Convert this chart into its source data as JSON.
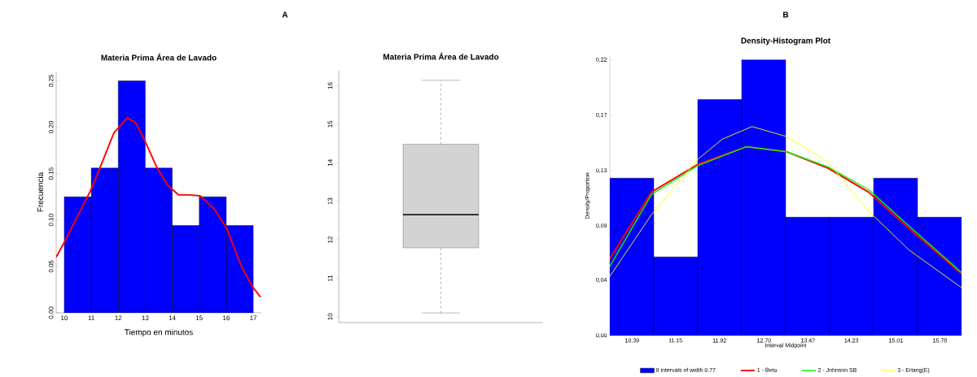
{
  "chart_data": [
    {
      "type": "histogram",
      "title": "Materia Prima Área de Lavado",
      "xlabel": "Tiempo en minutos",
      "ylabel": "Frecuencia",
      "annotations": [
        "A"
      ],
      "bins": [
        10,
        11,
        12,
        13,
        14,
        15,
        16,
        17
      ],
      "series": [
        {
          "color": "#0000ff",
          "values": [
            0.125,
            0.156,
            0.25,
            0.156,
            0.094,
            0.125,
            0.094
          ]
        },
        {
          "type": "line",
          "color": "#ff0000",
          "x": [
            9.7,
            10.0,
            10.63,
            10.98,
            11.43,
            11.84,
            12.34,
            12.64,
            12.99,
            13.44,
            13.84,
            14.24,
            14.64,
            15.04,
            15.55,
            16.0,
            16.55,
            16.95,
            17.27
          ],
          "values": [
            0.06,
            0.076,
            0.112,
            0.132,
            0.164,
            0.194,
            0.21,
            0.205,
            0.185,
            0.156,
            0.137,
            0.127,
            0.127,
            0.126,
            0.112,
            0.092,
            0.051,
            0.029,
            0.017
          ]
        }
      ],
      "xlim": [
        9.7,
        17.3
      ],
      "ylim": [
        0,
        0.26
      ],
      "xticks": [
        10,
        11,
        12,
        13,
        14,
        15,
        16,
        17
      ],
      "yticks": [
        {
          "value": 0,
          "label": "0.00"
        },
        {
          "value": 0.05,
          "label": "0.05"
        },
        {
          "value": 0.1,
          "label": "0.10"
        },
        {
          "value": 0.15,
          "label": "0.15"
        },
        {
          "value": 0.2,
          "label": "0.20"
        },
        {
          "value": 0.25,
          "label": "0.25"
        }
      ]
    },
    {
      "type": "box",
      "title": "Materia Prima Área de Lavado",
      "categories": [
        null
      ],
      "color": "#d3d3d3",
      "boxes": [
        {
          "low": 10.1,
          "q1": 11.79,
          "median": 12.65,
          "q3": 14.48,
          "high": 16.14
        }
      ],
      "ylim": [
        9.85,
        16.39
      ],
      "yticks": [
        {
          "value": 10,
          "label": "10"
        },
        {
          "value": 11,
          "label": "11"
        },
        {
          "value": 12,
          "label": "12"
        },
        {
          "value": 13,
          "label": "13"
        },
        {
          "value": 14,
          "label": "14"
        },
        {
          "value": 15,
          "label": "15"
        },
        {
          "value": 16,
          "label": "16"
        }
      ]
    },
    {
      "type": "histogram",
      "title": "Density-Histogram Plot",
      "xlabel": "Interval Midpoint",
      "ylabel": "Density/Proportion",
      "annotations": [
        "B"
      ],
      "legend": "bottom",
      "bins": [
        10.0,
        10.77,
        11.54,
        12.31,
        13.08,
        13.85,
        14.62,
        15.39,
        16.16
      ],
      "series": [
        {
          "name": "8 intervals of width 0.77",
          "color": "#0000ff",
          "values": [
            0.125,
            0.0625,
            0.1875,
            0.219,
            0.094,
            0.094,
            0.125,
            0.094
          ]
        },
        {
          "type": "line",
          "name": "1 - Beta",
          "color": "#ff0000",
          "x": [
            10.0,
            10.73,
            11.54,
            12.39,
            13.1,
            13.82,
            14.53,
            15.24,
            16.16
          ],
          "values": [
            0.061,
            0.114,
            0.136,
            0.15,
            0.146,
            0.133,
            0.114,
            0.085,
            0.049
          ]
        },
        {
          "type": "line",
          "name": "2 - Johnson SB",
          "color": "#00ff00",
          "x": [
            10.0,
            10.73,
            11.54,
            12.39,
            13.1,
            13.82,
            14.53,
            15.24,
            16.16
          ],
          "values": [
            0.055,
            0.112,
            0.135,
            0.15,
            0.146,
            0.134,
            0.116,
            0.087,
            0.05
          ]
        },
        {
          "type": "line",
          "name": "3 - Erlang(E)",
          "color": "#ffff00",
          "x": [
            10.0,
            10.73,
            11.54,
            11.97,
            12.49,
            13.1,
            13.82,
            14.53,
            15.24,
            16.16
          ],
          "values": [
            0.047,
            0.096,
            0.14,
            0.156,
            0.166,
            0.158,
            0.138,
            0.099,
            0.068,
            0.038
          ]
        }
      ],
      "xlim": [
        10.0,
        16.16
      ],
      "ylim": [
        0,
        0.222
      ],
      "xticks": [
        {
          "value": 10.39,
          "label": "10.39"
        },
        {
          "value": 11.15,
          "label": "11.15"
        },
        {
          "value": 11.92,
          "label": "11.92"
        },
        {
          "value": 12.7,
          "label": "12.70"
        },
        {
          "value": 13.47,
          "label": "13.47"
        },
        {
          "value": 14.23,
          "label": "14.23"
        },
        {
          "value": 15.01,
          "label": "15.01"
        },
        {
          "value": 15.78,
          "label": "15.78"
        }
      ],
      "yticks": [
        {
          "value": 0,
          "label": "0,00"
        },
        {
          "value": 0.044,
          "label": "0,04"
        },
        {
          "value": 0.087,
          "label": "0,09"
        },
        {
          "value": 0.131,
          "label": "0,13"
        },
        {
          "value": 0.175,
          "label": "0,17"
        },
        {
          "value": 0.219,
          "label": "0,22"
        }
      ]
    }
  ]
}
